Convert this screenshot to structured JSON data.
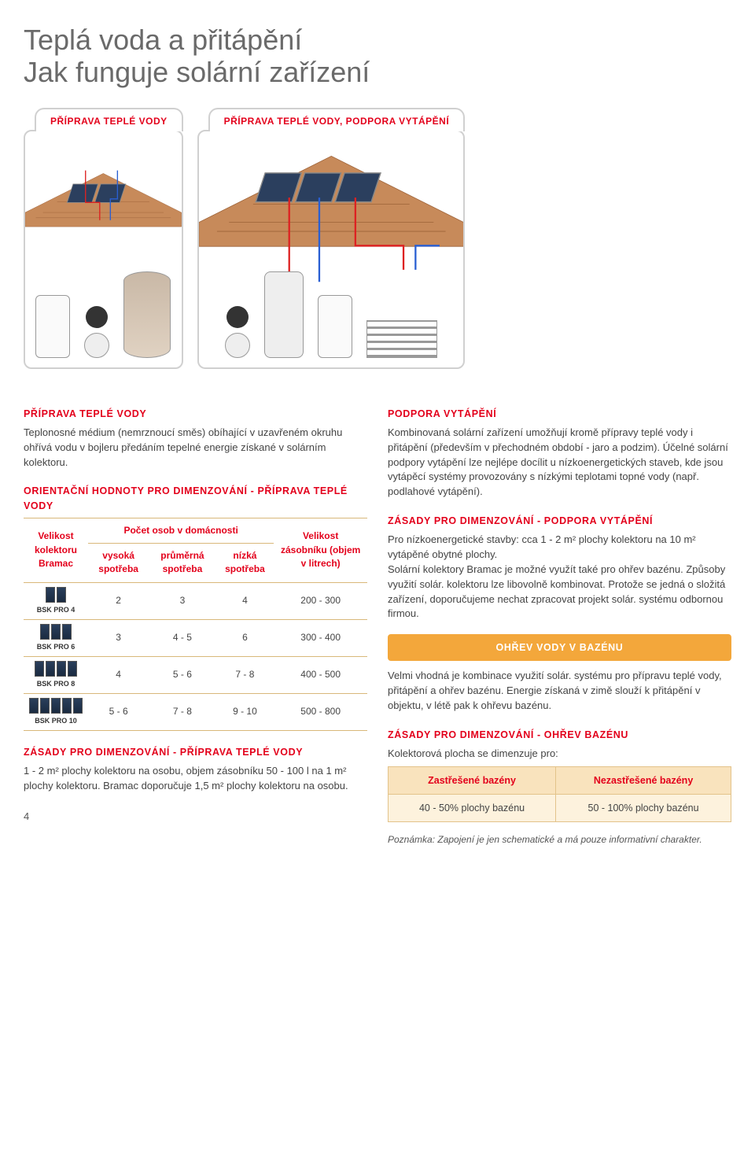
{
  "title": "Teplá voda a přitápění\nJak funguje solární zařízení",
  "panels": {
    "left": {
      "tab": "PŘÍPRAVA TEPLÉ VODY"
    },
    "right": {
      "tab": "PŘÍPRAVA TEPLÉ VODY, PODPORA VYTÁPĚNÍ"
    }
  },
  "left_col": {
    "sec1_label": "PŘÍPRAVA TEPLÉ VODY",
    "sec1_text": "Teplonosné médium (nemrznoucí směs) obíhající v uzavřeném okruhu ohřívá vodu v bojleru předáním tepelné energie získané v solárním kolektoru.",
    "sec2_label": "ORIENTAČNÍ HODNOTY PRO DIMENZOVÁNÍ - PŘÍPRAVA TEPLÉ VODY",
    "table": {
      "type": "table",
      "header_col1": "Velikost kolektoru Bramac",
      "header_group": "Počet osob v domácnosti",
      "header_sub": [
        "vysoká spotřeba",
        "průměrná spotřeba",
        "nízká spotřeba"
      ],
      "header_col5": "Velikost zásobníku (objem v litrech)",
      "rows": [
        {
          "label": "BSK PRO 4",
          "panels": 2,
          "v": [
            "2",
            "3",
            "4",
            "200 - 300"
          ]
        },
        {
          "label": "BSK PRO 6",
          "panels": 3,
          "v": [
            "3",
            "4 - 5",
            "6",
            "300 - 400"
          ]
        },
        {
          "label": "BSK PRO 8",
          "panels": 4,
          "v": [
            "4",
            "5 - 6",
            "7 - 8",
            "400 - 500"
          ]
        },
        {
          "label": "BSK PRO 10",
          "panels": 5,
          "v": [
            "5 - 6",
            "7 - 8",
            "9 - 10",
            "500 - 800"
          ]
        }
      ],
      "colors": {
        "header_text": "#e3001b",
        "rule": "#d9b87a"
      }
    },
    "sec3_label": "ZÁSADY PRO DIMENZOVÁNÍ - PŘÍPRAVA TEPLÉ VODY",
    "sec3_text": "1 - 2 m² plochy kolektoru na osobu, objem zásobníku 50 - 100 l na 1 m² plochy kolektoru. Bramac doporučuje 1,5 m² plochy kolektoru na osobu."
  },
  "right_col": {
    "sec1_label": "PODPORA VYTÁPĚNÍ",
    "sec1_text": "Kombinovaná solární zařízení umožňují kromě přípravy teplé vody i přitápění (především v přechodném období - jaro a podzim). Účelné solární podpory vytápění lze nejlépe docílit u nízkoenergetických staveb, kde jsou vytápěcí systémy provozovány s nízkými teplotami topné vody (např. podlahové vytápění).",
    "sec2_label": "ZÁSADY PRO DIMENZOVÁNÍ - PODPORA VYTÁPĚNÍ",
    "sec2_text": "Pro nízkoenergetické stavby: cca 1 - 2 m² plochy kolektoru na 10 m² vytápěné obytné plochy.\nSolární kolektory Bramac je možné využít také pro ohřev bazénu. Způsoby využití solár. kolektoru lze libovolně kombinovat. Protože se jedná o složitá zařízení, doporučujeme nechat zpracovat projekt solár. systému odbornou firmou.",
    "orange_bar": "OHŘEV VODY V BAZÉNU",
    "sec3_text": "Velmi vhodná je kombinace využití solár. systému pro přípravu teplé vody, přitápění a ohřev bazénu. Energie získaná v zimě slouží k přitápění v objektu, v létě pak k ohřevu bazénu.",
    "sec4_label": "ZÁSADY PRO DIMENZOVÁNÍ - OHŘEV BAZÉNU",
    "sec4_text": "Kolektorová plocha se dimenzuje pro:",
    "pool_table": {
      "type": "table",
      "columns": [
        "Zastřešené bazény",
        "Nezastřešené bazény"
      ],
      "rows": [
        [
          "40 - 50% plochy bazénu",
          "50 - 100% plochy bazénu"
        ]
      ],
      "colors": {
        "header_bg": "#f9e3bd",
        "cell_bg": "#fdf2dd",
        "border": "#e3c38a",
        "header_text": "#e3001b"
      }
    },
    "note": "Poznámka: Zapojení je jen schematické a má pouze informativní charakter."
  },
  "diagram": {
    "roof_colors": {
      "tile": "#c78a5a",
      "tile_stroke": "#9c6238",
      "panel": "#2b3f5e",
      "panel_frame": "#888"
    },
    "pipe_colors": {
      "hot": "#d22",
      "cold": "#2a5fd2"
    }
  },
  "page_number": "4",
  "theme": {
    "accent": "#e3001b",
    "orange": "#f3a73b",
    "text": "#444",
    "title": "#6a6a6a"
  }
}
